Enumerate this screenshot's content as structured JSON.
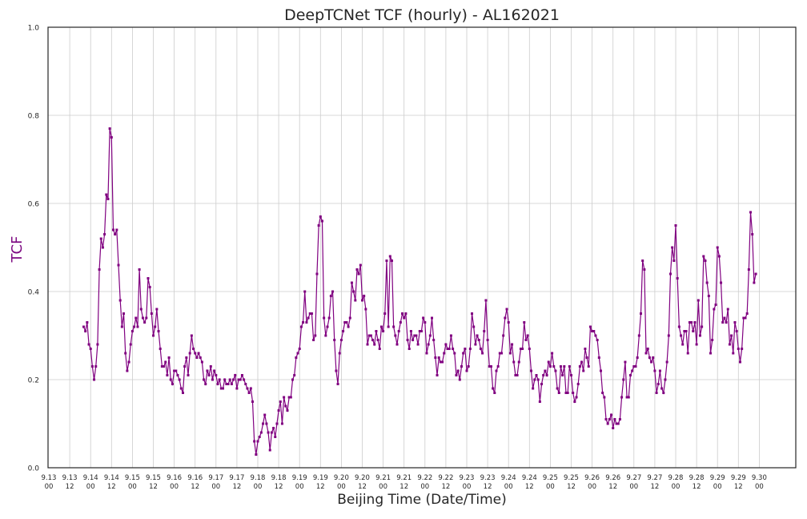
{
  "chart_data": {
    "type": "line",
    "title": "DeepTCNet TCF (hourly) - AL162021",
    "xlabel": "Beijing Time (Date/Time)",
    "ylabel": "TCF",
    "ylim": [
      0.0,
      1.0
    ],
    "yticks": [
      "0.0",
      "0.2",
      "0.4",
      "0.6",
      "0.8",
      "1.0"
    ],
    "xticks": [
      [
        "9.13",
        "00"
      ],
      [
        "9.13",
        "12"
      ],
      [
        "9.14",
        "00"
      ],
      [
        "9.14",
        "12"
      ],
      [
        "9.15",
        "00"
      ],
      [
        "9.15",
        "12"
      ],
      [
        "9.16",
        "00"
      ],
      [
        "9.16",
        "12"
      ],
      [
        "9.17",
        "00"
      ],
      [
        "9.17",
        "12"
      ],
      [
        "9.18",
        "00"
      ],
      [
        "9.18",
        "12"
      ],
      [
        "9.19",
        "00"
      ],
      [
        "9.19",
        "12"
      ],
      [
        "9.20",
        "00"
      ],
      [
        "9.20",
        "12"
      ],
      [
        "9.21",
        "00"
      ],
      [
        "9.21",
        "12"
      ],
      [
        "9.22",
        "00"
      ],
      [
        "9.22",
        "12"
      ],
      [
        "9.23",
        "00"
      ],
      [
        "9.23",
        "12"
      ],
      [
        "9.24",
        "00"
      ],
      [
        "9.24",
        "12"
      ],
      [
        "9.25",
        "00"
      ],
      [
        "9.25",
        "12"
      ],
      [
        "9.26",
        "00"
      ],
      [
        "9.26",
        "12"
      ],
      [
        "9.27",
        "00"
      ],
      [
        "9.27",
        "12"
      ],
      [
        "9.28",
        "00"
      ],
      [
        "9.28",
        "12"
      ],
      [
        "9.29",
        "00"
      ],
      [
        "9.29",
        "12"
      ],
      [
        "9.30",
        "00"
      ]
    ],
    "grid": true,
    "series": [
      {
        "color": "#800080",
        "x_start": "9.13 20",
        "x_step_hours": 1,
        "values": [
          0.32,
          0.31,
          0.33,
          0.28,
          0.27,
          0.23,
          0.2,
          0.23,
          0.28,
          0.45,
          0.52,
          0.5,
          0.53,
          0.62,
          0.61,
          0.77,
          0.75,
          0.54,
          0.53,
          0.54,
          0.46,
          0.38,
          0.32,
          0.35,
          0.26,
          0.22,
          0.24,
          0.28,
          0.31,
          0.32,
          0.34,
          0.32,
          0.45,
          0.36,
          0.34,
          0.33,
          0.34,
          0.43,
          0.41,
          0.35,
          0.3,
          0.32,
          0.36,
          0.31,
          0.27,
          0.23,
          0.23,
          0.24,
          0.21,
          0.25,
          0.2,
          0.19,
          0.22,
          0.22,
          0.21,
          0.2,
          0.18,
          0.17,
          0.23,
          0.25,
          0.21,
          0.26,
          0.3,
          0.27,
          0.26,
          0.25,
          0.26,
          0.25,
          0.24,
          0.2,
          0.19,
          0.22,
          0.21,
          0.23,
          0.2,
          0.22,
          0.21,
          0.19,
          0.2,
          0.18,
          0.18,
          0.2,
          0.19,
          0.19,
          0.2,
          0.19,
          0.2,
          0.21,
          0.18,
          0.2,
          0.2,
          0.21,
          0.2,
          0.19,
          0.18,
          0.17,
          0.18,
          0.15,
          0.06,
          0.03,
          0.06,
          0.07,
          0.08,
          0.1,
          0.12,
          0.1,
          0.08,
          0.04,
          0.08,
          0.09,
          0.07,
          0.1,
          0.13,
          0.15,
          0.1,
          0.16,
          0.14,
          0.13,
          0.16,
          0.16,
          0.2,
          0.21,
          0.25,
          0.26,
          0.27,
          0.32,
          0.33,
          0.4,
          0.33,
          0.34,
          0.35,
          0.35,
          0.29,
          0.3,
          0.44,
          0.55,
          0.57,
          0.56,
          0.34,
          0.3,
          0.32,
          0.34,
          0.39,
          0.4,
          0.29,
          0.22,
          0.19,
          0.26,
          0.29,
          0.31,
          0.33,
          0.33,
          0.32,
          0.34,
          0.42,
          0.4,
          0.38,
          0.45,
          0.44,
          0.46,
          0.38,
          0.39,
          0.36,
          0.28,
          0.3,
          0.3,
          0.29,
          0.28,
          0.31,
          0.29,
          0.27,
          0.32,
          0.31,
          0.35,
          0.47,
          0.32,
          0.48,
          0.47,
          0.32,
          0.3,
          0.28,
          0.31,
          0.33,
          0.35,
          0.34,
          0.35,
          0.29,
          0.27,
          0.31,
          0.29,
          0.3,
          0.3,
          0.28,
          0.31,
          0.31,
          0.34,
          0.33,
          0.26,
          0.28,
          0.3,
          0.34,
          0.29,
          0.25,
          0.21,
          0.25,
          0.24,
          0.24,
          0.26,
          0.28,
          0.27,
          0.27,
          0.3,
          0.27,
          0.26,
          0.21,
          0.22,
          0.2,
          0.23,
          0.26,
          0.27,
          0.22,
          0.23,
          0.27,
          0.35,
          0.32,
          0.28,
          0.3,
          0.29,
          0.27,
          0.26,
          0.31,
          0.38,
          0.29,
          0.23,
          0.23,
          0.18,
          0.17,
          0.22,
          0.23,
          0.26,
          0.26,
          0.3,
          0.34,
          0.36,
          0.33,
          0.26,
          0.28,
          0.24,
          0.21,
          0.21,
          0.24,
          0.27,
          0.27,
          0.33,
          0.29,
          0.3,
          0.27,
          0.22,
          0.18,
          0.2,
          0.21,
          0.2,
          0.15,
          0.19,
          0.21,
          0.22,
          0.21,
          0.24,
          0.23,
          0.26,
          0.23,
          0.22,
          0.18,
          0.17,
          0.23,
          0.21,
          0.23,
          0.17,
          0.17,
          0.23,
          0.21,
          0.17,
          0.15,
          0.16,
          0.19,
          0.23,
          0.24,
          0.22,
          0.27,
          0.25,
          0.23,
          0.32,
          0.31,
          0.31,
          0.3,
          0.29,
          0.25,
          0.22,
          0.17,
          0.16,
          0.11,
          0.1,
          0.11,
          0.12,
          0.09,
          0.11,
          0.1,
          0.1,
          0.11,
          0.16,
          0.2,
          0.24,
          0.16,
          0.16,
          0.21,
          0.22,
          0.23,
          0.23,
          0.25,
          0.3,
          0.35,
          0.47,
          0.45,
          0.26,
          0.27,
          0.25,
          0.24,
          0.25,
          0.22,
          0.17,
          0.19,
          0.22,
          0.18,
          0.17,
          0.2,
          0.24,
          0.3,
          0.44,
          0.5,
          0.47,
          0.55,
          0.43,
          0.32,
          0.3,
          0.28,
          0.31,
          0.31,
          0.26,
          0.33,
          0.33,
          0.31,
          0.33,
          0.28,
          0.38,
          0.3,
          0.32,
          0.48,
          0.47,
          0.42,
          0.39,
          0.26,
          0.29,
          0.36,
          0.37,
          0.5,
          0.48,
          0.42,
          0.33,
          0.34,
          0.33,
          0.36,
          0.28,
          0.3,
          0.26,
          0.33,
          0.31,
          0.27,
          0.24,
          0.27,
          0.34,
          0.34,
          0.35,
          0.45,
          0.58,
          0.53,
          0.42,
          0.44
        ]
      }
    ]
  }
}
